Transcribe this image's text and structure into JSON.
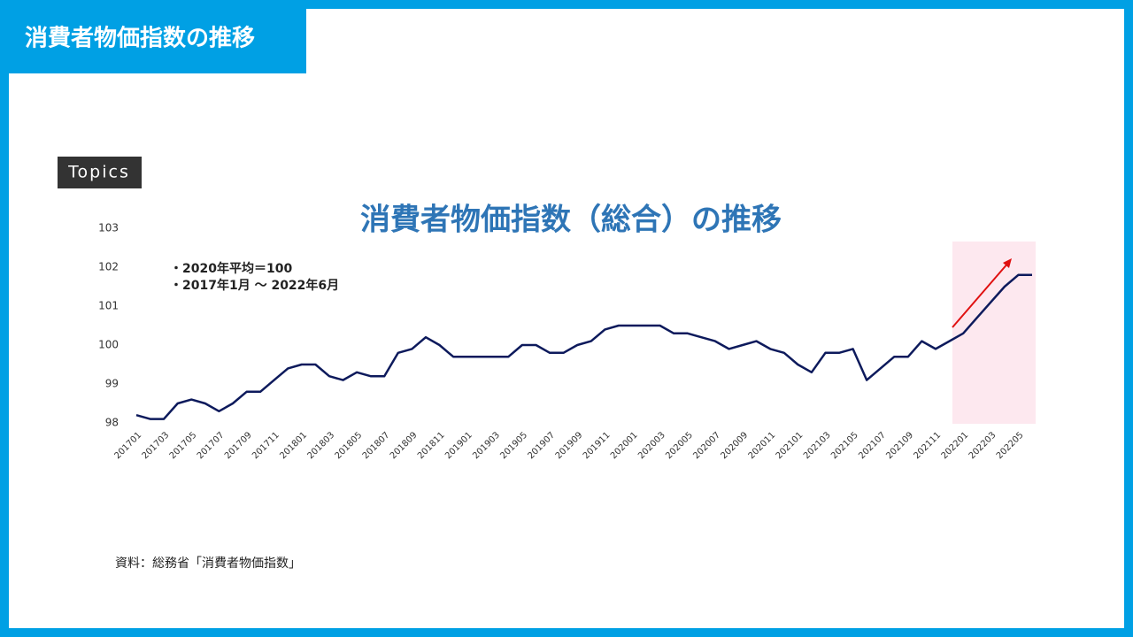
{
  "header": {
    "title": "消費者物価指数の推移"
  },
  "topics": "Topics",
  "chart_data": {
    "type": "line",
    "title": "消費者物価指数（総合）の推移",
    "annotations": [
      "・2020年平均＝100",
      "・2017年1月 ～ 2022年6月"
    ],
    "categories": [
      "201701",
      null,
      "201703",
      null,
      "201705",
      null,
      "201707",
      null,
      "201709",
      null,
      "201711",
      null,
      "201801",
      null,
      "201803",
      null,
      "201805",
      null,
      "201807",
      null,
      "201809",
      null,
      "201811",
      null,
      "201901",
      null,
      "201903",
      null,
      "201905",
      null,
      "201907",
      null,
      "201909",
      null,
      "201911",
      null,
      "202001",
      null,
      "202003",
      null,
      "202005",
      null,
      "202007",
      null,
      "202009",
      null,
      "202011",
      null,
      "202101",
      null,
      "202103",
      null,
      "202105",
      null,
      "202107",
      null,
      "202109",
      null,
      "202111",
      null,
      "202201",
      null,
      "202203",
      null,
      "202205",
      null
    ],
    "values": [
      98.2,
      98.1,
      98.1,
      98.5,
      98.6,
      98.5,
      98.3,
      98.5,
      98.8,
      98.8,
      99.1,
      99.4,
      99.5,
      99.5,
      99.2,
      99.1,
      99.3,
      99.2,
      99.2,
      99.8,
      99.9,
      100.2,
      100.0,
      99.7,
      99.7,
      99.7,
      99.7,
      99.7,
      100.0,
      100.0,
      99.8,
      99.8,
      100.0,
      100.1,
      100.4,
      100.5,
      100.5,
      100.5,
      100.5,
      100.3,
      100.3,
      100.2,
      100.1,
      99.9,
      100.0,
      100.1,
      99.9,
      99.8,
      99.5,
      99.3,
      99.8,
      99.8,
      99.9,
      99.1,
      99.4,
      99.7,
      99.7,
      100.1,
      99.9,
      100.1,
      100.3,
      100.7,
      101.1,
      101.5,
      101.8,
      101.8
    ],
    "color": "#0d1a5c",
    "ylim": [
      98,
      103
    ],
    "yticks": [
      98,
      99,
      100,
      101,
      102,
      103
    ]
  },
  "source": "資料：総務省「消費者物価指数」"
}
